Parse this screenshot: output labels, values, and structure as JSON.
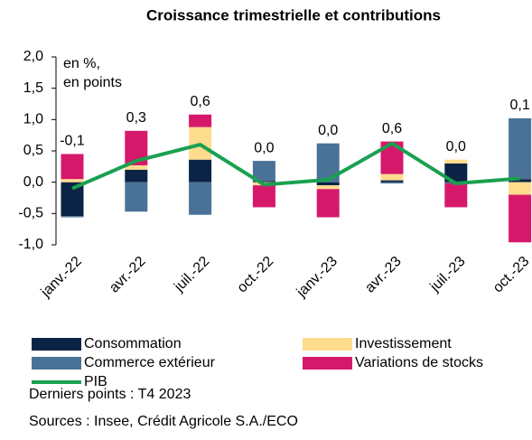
{
  "chart_data": {
    "type": "stacked_bar_line",
    "title": "Croissance trimestrielle et contributions",
    "annotation": [
      "en %,",
      "en points"
    ],
    "categories": [
      "janv.-22",
      "avr.-22",
      "juil.-22",
      "oct.-22",
      "janv.-23",
      "avr.-23",
      "juil.-23",
      "oct.-23"
    ],
    "series": [
      {
        "name": "Consommation",
        "color": "#0b2344",
        "kind": "bar",
        "values": [
          -0.54,
          0.2,
          0.36,
          0.02,
          -0.05,
          0.03,
          0.3,
          0.05
        ]
      },
      {
        "name": "Investissement",
        "color": "#fddc8e",
        "kind": "bar",
        "values": [
          0.05,
          0.07,
          0.52,
          -0.05,
          -0.06,
          0.1,
          0.06,
          -0.2
        ]
      },
      {
        "name": "Commerce extérieur",
        "color": "#4a7296",
        "kind": "bar",
        "values": [
          -0.02,
          -0.47,
          -0.52,
          0.32,
          0.62,
          -0.02,
          -0.02,
          0.97
        ]
      },
      {
        "name": "Variations de stocks",
        "color": "#d6186b",
        "kind": "bar",
        "values": [
          0.4,
          0.55,
          0.2,
          -0.35,
          -0.45,
          0.52,
          -0.38,
          -0.76
        ]
      },
      {
        "name": "PIB",
        "color": "#1aa050",
        "kind": "line",
        "values": [
          -0.1,
          0.34,
          0.6,
          -0.04,
          0.04,
          0.62,
          -0.02,
          0.06
        ],
        "value_labels": [
          "-0,1",
          "0,3",
          "0,6",
          "0,0",
          "0,0",
          "0,6",
          "0,0",
          "0,1"
        ]
      }
    ],
    "ylim": [
      -1,
      2
    ],
    "yticks": [
      {
        "value": 2,
        "label": "2,0"
      },
      {
        "value": 1.5,
        "label": "1,5"
      },
      {
        "value": 1,
        "label": "1,0"
      },
      {
        "value": 0.5,
        "label": "0,5"
      },
      {
        "value": 0,
        "label": "0,0"
      },
      {
        "value": -0.5,
        "label": "-0,5"
      },
      {
        "value": -1,
        "label": "-1,0"
      }
    ],
    "grid": false,
    "footnotes": [
      "Derniers points : T4 2023",
      "Sources : Insee, Crédit Agricole S.A./ECO"
    ]
  }
}
